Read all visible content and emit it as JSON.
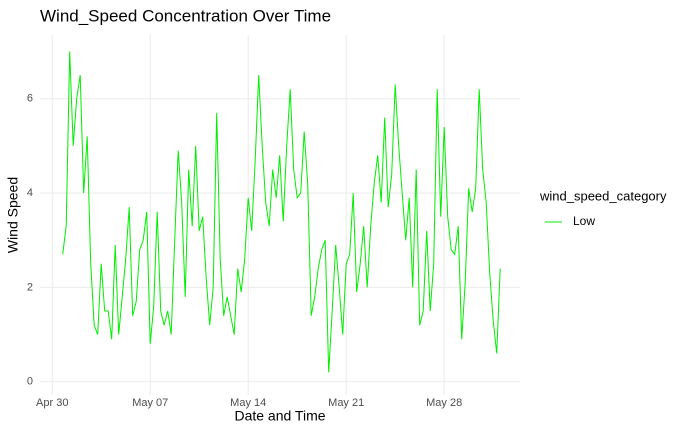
{
  "chart_data": {
    "type": "line",
    "title": "Wind_Speed Concentration Over Time",
    "x_label": "Date and Time",
    "y_label": "Wind Speed",
    "legend_title": "wind_speed_category",
    "x": [
      "Apr 30 18:00",
      "May 01 00:00",
      "May 01 06:00",
      "May 01 12:00",
      "May 01 18:00",
      "May 02 00:00",
      "May 02 06:00",
      "May 02 12:00",
      "May 02 18:00",
      "May 03 00:00",
      "May 03 06:00",
      "May 03 12:00",
      "May 03 18:00",
      "May 04 00:00",
      "May 04 06:00",
      "May 04 12:00",
      "May 04 18:00",
      "May 05 00:00",
      "May 05 06:00",
      "May 05 12:00",
      "May 05 18:00",
      "May 06 00:00",
      "May 06 06:00",
      "May 06 12:00",
      "May 06 18:00",
      "May 07 00:00",
      "May 07 06:00",
      "May 07 12:00",
      "May 07 18:00",
      "May 08 00:00",
      "May 08 06:00",
      "May 08 12:00",
      "May 08 18:00",
      "May 09 00:00",
      "May 09 06:00",
      "May 09 12:00",
      "May 09 18:00",
      "May 10 00:00",
      "May 10 06:00",
      "May 10 12:00",
      "May 10 18:00",
      "May 11 00:00",
      "May 11 06:00",
      "May 11 12:00",
      "May 11 18:00",
      "May 12 00:00",
      "May 12 06:00",
      "May 12 12:00",
      "May 12 18:00",
      "May 13 00:00",
      "May 13 06:00",
      "May 13 12:00",
      "May 13 18:00",
      "May 14 00:00",
      "May 14 06:00",
      "May 14 12:00",
      "May 14 18:00",
      "May 15 00:00",
      "May 15 06:00",
      "May 15 12:00",
      "May 15 18:00",
      "May 16 00:00",
      "May 16 06:00",
      "May 16 12:00",
      "May 16 18:00",
      "May 17 00:00",
      "May 17 06:00",
      "May 17 12:00",
      "May 17 18:00",
      "May 18 00:00",
      "May 18 06:00",
      "May 18 12:00",
      "May 18 18:00",
      "May 19 00:00",
      "May 19 06:00",
      "May 19 12:00",
      "May 19 18:00",
      "May 20 00:00",
      "May 20 06:00",
      "May 20 12:00",
      "May 20 18:00",
      "May 21 00:00",
      "May 21 06:00",
      "May 21 12:00",
      "May 21 18:00",
      "May 22 00:00",
      "May 22 06:00",
      "May 22 12:00",
      "May 22 18:00",
      "May 23 00:00",
      "May 23 06:00",
      "May 23 12:00",
      "May 23 18:00",
      "May 24 00:00",
      "May 24 06:00",
      "May 24 12:00",
      "May 24 18:00",
      "May 25 00:00",
      "May 25 06:00",
      "May 25 12:00",
      "May 25 18:00",
      "May 26 00:00",
      "May 26 06:00",
      "May 26 12:00",
      "May 26 18:00",
      "May 27 00:00",
      "May 27 06:00",
      "May 27 12:00",
      "May 27 18:00",
      "May 28 00:00",
      "May 28 06:00",
      "May 28 12:00",
      "May 28 18:00",
      "May 29 00:00",
      "May 29 06:00",
      "May 29 12:00",
      "May 29 18:00",
      "May 30 00:00",
      "May 30 06:00",
      "May 30 12:00",
      "May 30 18:00",
      "May 31 00:00",
      "May 31 06:00",
      "May 31 12:00",
      "May 31 18:00",
      "Jun 01 00:00"
    ],
    "series": [
      {
        "name": "Low",
        "color": "#00ee00",
        "values": [
          2.7,
          3.3,
          7.0,
          5.0,
          6.0,
          6.5,
          4.0,
          5.2,
          2.5,
          1.2,
          1.0,
          2.5,
          1.5,
          1.5,
          0.9,
          2.9,
          1.0,
          1.8,
          2.6,
          3.7,
          1.4,
          1.7,
          2.8,
          3.0,
          3.6,
          0.8,
          1.6,
          3.6,
          1.5,
          1.2,
          1.5,
          1.0,
          3.0,
          4.9,
          3.8,
          1.8,
          4.5,
          3.3,
          5.0,
          3.2,
          3.5,
          2.2,
          1.2,
          2.0,
          5.7,
          2.6,
          1.4,
          1.8,
          1.4,
          1.0,
          2.4,
          1.9,
          2.6,
          3.9,
          3.2,
          4.7,
          6.5,
          5.0,
          3.8,
          3.3,
          4.5,
          3.9,
          4.8,
          3.4,
          5.0,
          6.2,
          4.5,
          3.9,
          4.0,
          5.3,
          4.2,
          1.4,
          1.8,
          2.4,
          2.8,
          3.0,
          0.2,
          1.5,
          2.9,
          2.0,
          1.0,
          2.5,
          2.7,
          4.0,
          1.9,
          2.5,
          3.3,
          2.0,
          3.3,
          4.2,
          4.8,
          3.8,
          5.6,
          3.7,
          4.4,
          6.3,
          5.0,
          4.0,
          3.0,
          3.9,
          2.0,
          4.5,
          1.2,
          1.5,
          3.2,
          1.5,
          2.5,
          6.2,
          3.5,
          5.4,
          3.5,
          2.8,
          2.7,
          3.3,
          0.9,
          2.1,
          4.1,
          3.6,
          4.1,
          6.2,
          4.5,
          3.8,
          2.3,
          1.3,
          0.6,
          2.4
        ]
      }
    ],
    "xlim": [
      "Apr 29 03:00",
      "Jun 02 10:00"
    ],
    "xticks": [
      "Apr 30",
      "May 07",
      "May 14",
      "May 21",
      "May 28"
    ],
    "ylim": [
      -0.28,
      7.35
    ],
    "yticks": [
      0,
      2,
      4,
      6
    ],
    "grid": true,
    "legend": "right"
  }
}
